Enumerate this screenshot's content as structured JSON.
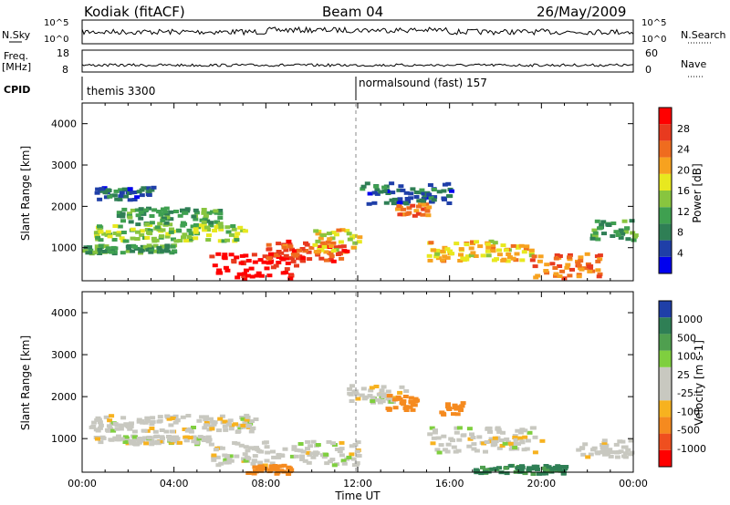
{
  "header": {
    "station": "Kodiak (fitACF)",
    "beam": "Beam 04",
    "date": "26/May/2009"
  },
  "top_panels": {
    "nsky_label": "N.Sky",
    "nsearch_label": "N.Search",
    "noise_ticks": [
      "10^5",
      "10^0"
    ],
    "freq_label_1": "Freq.",
    "freq_label_2": "[MHz]",
    "freq_ticks": [
      "18",
      "8"
    ],
    "nave_ticks": [
      "60",
      "0"
    ],
    "nave_label": "Nave",
    "cpid_label": "CPID",
    "cpid_1": "themis 3300",
    "cpid_2": "normalsound (fast) 157"
  },
  "colors": {
    "power_scale": [
      "#0000ee",
      "#1f3fa8",
      "#2f7f55",
      "#3fa050",
      "#88c53f",
      "#e8e81f",
      "#f7a21f",
      "#ef6c1f",
      "#e83a1f",
      "#ff0000"
    ],
    "velocity_scale": [
      "#1f3fa8",
      "#2f7f55",
      "#4f9f4f",
      "#7fcf3f",
      "#c8c8c0",
      "#c8c8c0",
      "#f7b21f",
      "#f58a1f",
      "#ef4f1f",
      "#ff0000"
    ]
  },
  "chart_data": [
    {
      "type": "heatmap",
      "title": "",
      "xlabel": "Time UT",
      "ylabel": "Slant Range [km]",
      "x_ticks": [
        "00:00",
        "04:00",
        "08:00",
        "12:00",
        "16:00",
        "20:00",
        "00:00"
      ],
      "y_ticks": [
        "1000",
        "2000",
        "3000",
        "4000"
      ],
      "ylim": [
        200,
        4500
      ],
      "colorbar": {
        "label": "Power [dB]",
        "ticks": [
          "28",
          "24",
          "20",
          "16",
          "12",
          "8",
          "4"
        ],
        "range": [
          0,
          30
        ]
      },
      "regions": [
        {
          "t": [
            0.5,
            7.0
          ],
          "r": [
            1200,
            1600
          ],
          "db": 14
        },
        {
          "t": [
            1.5,
            6.0
          ],
          "r": [
            1600,
            2000
          ],
          "db": 10
        },
        {
          "t": [
            0.5,
            3.0
          ],
          "r": [
            2200,
            2500
          ],
          "db": 6
        },
        {
          "t": [
            0.0,
            4.0
          ],
          "r": [
            900,
            1100
          ],
          "db": 10
        },
        {
          "t": [
            5.5,
            9.5
          ],
          "r": [
            300,
            900
          ],
          "db": 28
        },
        {
          "t": [
            8.0,
            11.5
          ],
          "r": [
            700,
            1200
          ],
          "db": 24
        },
        {
          "t": [
            10.0,
            12.0
          ],
          "r": [
            900,
            1500
          ],
          "db": 18
        },
        {
          "t": [
            13.5,
            15.0
          ],
          "r": [
            1800,
            2100
          ],
          "db": 22
        },
        {
          "t": [
            12.0,
            16.0
          ],
          "r": [
            2100,
            2600
          ],
          "db": 6
        },
        {
          "t": [
            15.0,
            19.5
          ],
          "r": [
            700,
            1200
          ],
          "db": 18
        },
        {
          "t": [
            19.5,
            22.5
          ],
          "r": [
            300,
            900
          ],
          "db": 22
        },
        {
          "t": [
            22.0,
            24.0
          ],
          "r": [
            1200,
            1700
          ],
          "db": 10
        }
      ]
    },
    {
      "type": "heatmap",
      "title": "",
      "xlabel": "Time UT",
      "ylabel": "Slant Range [km]",
      "x_ticks": [
        "00:00",
        "04:00",
        "08:00",
        "12:00",
        "16:00",
        "20:00",
        "00:00"
      ],
      "y_ticks": [
        "1000",
        "2000",
        "3000",
        "4000"
      ],
      "ylim": [
        200,
        4500
      ],
      "colorbar": {
        "label": "Velocity [m s-1]",
        "ticks": [
          "1000",
          "500",
          "100",
          "25",
          "-25",
          "-100",
          "-500",
          "-1000"
        ],
        "range": [
          -1000,
          1000
        ]
      },
      "regions": [
        {
          "t": [
            0.3,
            7.5
          ],
          "r": [
            1200,
            1600
          ],
          "v": 0
        },
        {
          "t": [
            0.5,
            5.5
          ],
          "r": [
            900,
            1100
          ],
          "v": 0
        },
        {
          "t": [
            5.5,
            12.0
          ],
          "r": [
            400,
            1000
          ],
          "v": 0
        },
        {
          "t": [
            7.0,
            9.0
          ],
          "r": [
            200,
            400
          ],
          "v": -150
        },
        {
          "t": [
            11.5,
            14.0
          ],
          "r": [
            1900,
            2300
          ],
          "v": 0
        },
        {
          "t": [
            13.0,
            14.5
          ],
          "r": [
            1700,
            2100
          ],
          "v": -150
        },
        {
          "t": [
            15.5,
            16.5
          ],
          "r": [
            1600,
            1900
          ],
          "v": -150
        },
        {
          "t": [
            15.0,
            20.0
          ],
          "r": [
            700,
            1300
          ],
          "v": 0
        },
        {
          "t": [
            17.0,
            21.0
          ],
          "r": [
            200,
            400
          ],
          "v": 120
        },
        {
          "t": [
            21.5,
            24.0
          ],
          "r": [
            600,
            1000
          ],
          "v": 0
        }
      ]
    }
  ]
}
